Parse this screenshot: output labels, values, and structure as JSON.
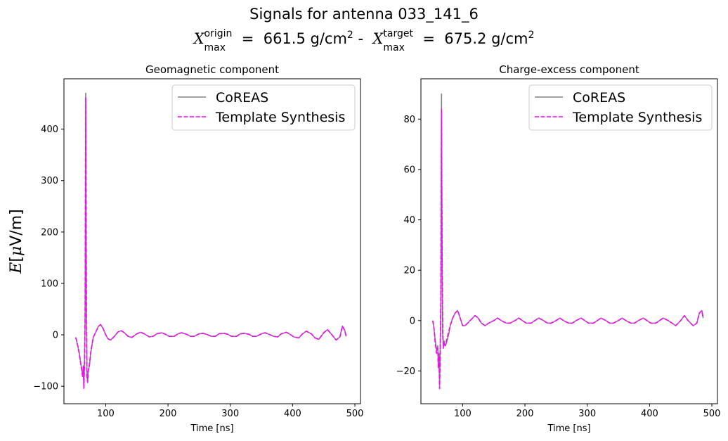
{
  "figure": {
    "title_line1": "Signals for antenna 033_141_6",
    "title_line2": {
      "origin_label": "X",
      "origin_sup": "origin",
      "origin_sub": "max",
      "origin_value": "661.5 g/cm",
      "target_label": "X",
      "target_sup": "target",
      "target_sub": "max",
      "target_value": "675.2 g/cm",
      "exponent": "2",
      "separator": "-"
    },
    "ylabel": "E[μV/m]"
  },
  "colors": {
    "coreas": "#808080",
    "template": "#ff00ff",
    "axes": "#000000",
    "legend_border": "#cccccc"
  },
  "chart_data": [
    {
      "type": "line",
      "title": "Geomagnetic component",
      "xlabel": "Time [ns]",
      "ylabel": "E[μV/m]",
      "xlim": [
        33,
        509
      ],
      "ylim": [
        -134,
        498
      ],
      "xticks": [
        100,
        200,
        300,
        400,
        500
      ],
      "yticks": [
        -100,
        0,
        100,
        200,
        300,
        400
      ],
      "ytick_labels": [
        "−100",
        "0",
        "100",
        "200",
        "300",
        "400"
      ],
      "grid": false,
      "legend": {
        "position": "upper right",
        "entries": [
          "CoREAS",
          "Template Synthesis"
        ]
      },
      "series": [
        {
          "name": "CoREAS",
          "style": "solid",
          "x": [
            52,
            55,
            58,
            60,
            62,
            63,
            64,
            65,
            66,
            67,
            68,
            69,
            70,
            71,
            72,
            74,
            76,
            78,
            80,
            84,
            88,
            92,
            96,
            100,
            104,
            108,
            114,
            120,
            125,
            130,
            136,
            142,
            150,
            156,
            162,
            170,
            176,
            182,
            190,
            196,
            202,
            210,
            216,
            222,
            230,
            236,
            242,
            250,
            256,
            262,
            270,
            276,
            282,
            290,
            296,
            302,
            310,
            316,
            322,
            330,
            336,
            342,
            350,
            356,
            362,
            370,
            376,
            382,
            390,
            396,
            402,
            410,
            416,
            422,
            430,
            436,
            442,
            450,
            456,
            462,
            470,
            476,
            480,
            484,
            486
          ],
          "y": [
            -5,
            -20,
            -38,
            -55,
            -70,
            -80,
            -60,
            -104,
            -50,
            30,
            470,
            100,
            -80,
            -93,
            -70,
            -60,
            -35,
            -20,
            -5,
            5,
            16,
            20,
            12,
            0,
            -8,
            -10,
            -3,
            6,
            8,
            4,
            -3,
            -5,
            2,
            5,
            2,
            -4,
            -3,
            2,
            4,
            1,
            -3,
            -3,
            2,
            4,
            1,
            -3,
            -3,
            2,
            3,
            1,
            -3,
            -3,
            2,
            3,
            1,
            -3,
            -3,
            2,
            3,
            1,
            -3,
            -3,
            2,
            4,
            1,
            -3,
            -4,
            2,
            5,
            1,
            -4,
            -6,
            2,
            7,
            2,
            -6,
            -9,
            4,
            10,
            2,
            -10,
            -4,
            17,
            8,
            -3
          ]
        },
        {
          "name": "Template Synthesis",
          "style": "dashed",
          "x": [
            52,
            55,
            58,
            60,
            62,
            63,
            64,
            65,
            66,
            67,
            68,
            69,
            70,
            71,
            72,
            74,
            76,
            78,
            80,
            84,
            88,
            92,
            96,
            100,
            104,
            108,
            114,
            120,
            125,
            130,
            136,
            142,
            150,
            156,
            162,
            170,
            176,
            182,
            190,
            196,
            202,
            210,
            216,
            222,
            230,
            236,
            242,
            250,
            256,
            262,
            270,
            276,
            282,
            290,
            296,
            302,
            310,
            316,
            322,
            330,
            336,
            342,
            350,
            356,
            362,
            370,
            376,
            382,
            390,
            396,
            402,
            410,
            416,
            422,
            430,
            436,
            442,
            450,
            456,
            462,
            470,
            476,
            480,
            484,
            486
          ],
          "y": [
            -5,
            -21,
            -40,
            -57,
            -72,
            -82,
            -62,
            -104,
            -52,
            28,
            462,
            96,
            -82,
            -92,
            -70,
            -58,
            -34,
            -19,
            -5,
            5,
            16,
            20,
            12,
            0,
            -8,
            -10,
            -3,
            6,
            8,
            4,
            -3,
            -5,
            2,
            5,
            2,
            -4,
            -3,
            2,
            4,
            1,
            -3,
            -3,
            2,
            4,
            1,
            -3,
            -3,
            2,
            3,
            1,
            -3,
            -3,
            2,
            3,
            1,
            -3,
            -3,
            2,
            3,
            1,
            -3,
            -3,
            2,
            4,
            1,
            -3,
            -4,
            2,
            5,
            1,
            -4,
            -6,
            2,
            7,
            2,
            -6,
            -9,
            4,
            10,
            2,
            -10,
            -4,
            17,
            8,
            -3
          ]
        }
      ]
    },
    {
      "type": "line",
      "title": "Charge-excess component",
      "xlabel": "Time [ns]",
      "ylabel": "",
      "xlim": [
        33,
        509
      ],
      "ylim": [
        -33,
        96
      ],
      "xticks": [
        100,
        200,
        300,
        400,
        500
      ],
      "yticks": [
        -20,
        0,
        20,
        40,
        60,
        80
      ],
      "ytick_labels": [
        "−20",
        "0",
        "20",
        "40",
        "60",
        "80"
      ],
      "grid": false,
      "legend": {
        "position": "upper right",
        "entries": [
          "CoREAS",
          "Template Synthesis"
        ]
      },
      "series": [
        {
          "name": "CoREAS",
          "style": "solid",
          "x": [
            52,
            54,
            56,
            58,
            60,
            61,
            62,
            63,
            64,
            65,
            66,
            67,
            68,
            69,
            70,
            72,
            74,
            76,
            78,
            80,
            84,
            88,
            92,
            96,
            100,
            104,
            108,
            112,
            116,
            120,
            125,
            130,
            136,
            142,
            150,
            156,
            162,
            170,
            176,
            184,
            190,
            196,
            202,
            210,
            216,
            222,
            230,
            236,
            242,
            250,
            256,
            262,
            270,
            276,
            282,
            290,
            296,
            302,
            310,
            316,
            322,
            330,
            336,
            342,
            350,
            356,
            362,
            370,
            376,
            382,
            390,
            396,
            402,
            410,
            416,
            422,
            430,
            436,
            442,
            450,
            456,
            462,
            470,
            476,
            480,
            484,
            486
          ],
          "y": [
            0,
            -3,
            -8,
            -12,
            -10,
            -18,
            -13,
            -27,
            -10,
            10,
            90,
            30,
            -5,
            -10,
            -8,
            -10,
            -9,
            -7,
            -5,
            -2,
            1,
            3,
            4,
            1,
            -2,
            -2,
            -1,
            0,
            1,
            2,
            1,
            -1,
            -2,
            -1,
            0,
            1,
            0,
            -1,
            -1,
            0,
            1,
            0,
            -1,
            -1,
            0,
            1,
            0,
            -1,
            -1,
            0,
            1,
            0,
            -1,
            -1,
            0,
            1,
            0,
            -1,
            -1,
            0,
            1,
            0,
            -1,
            -1,
            0,
            1,
            0,
            -1,
            -1,
            0,
            1,
            0,
            -1,
            -1,
            0,
            1,
            0,
            -1,
            -2,
            0,
            2,
            0,
            -2,
            -1,
            3,
            4,
            1
          ]
        },
        {
          "name": "Template Synthesis",
          "style": "dashed",
          "x": [
            52,
            54,
            56,
            58,
            60,
            61,
            62,
            63,
            64,
            65,
            66,
            67,
            68,
            69,
            70,
            72,
            74,
            76,
            78,
            80,
            84,
            88,
            92,
            96,
            100,
            104,
            108,
            112,
            116,
            120,
            125,
            130,
            136,
            142,
            150,
            156,
            162,
            170,
            176,
            184,
            190,
            196,
            202,
            210,
            216,
            222,
            230,
            236,
            242,
            250,
            256,
            262,
            270,
            276,
            282,
            290,
            296,
            302,
            310,
            316,
            322,
            330,
            336,
            342,
            350,
            356,
            362,
            370,
            376,
            382,
            390,
            396,
            402,
            410,
            416,
            422,
            430,
            436,
            442,
            450,
            456,
            462,
            470,
            476,
            480,
            484,
            486
          ],
          "y": [
            0,
            -3,
            -9,
            -13,
            -11,
            -19,
            -14,
            -27,
            -11,
            8,
            84,
            28,
            -6,
            -11,
            -9,
            -10,
            -8,
            -6,
            -4,
            -2,
            1,
            3,
            4,
            1,
            -2,
            -2,
            -1,
            0,
            1,
            2,
            1,
            -1,
            -2,
            -1,
            0,
            1,
            0,
            -1,
            -1,
            0,
            1,
            0,
            -1,
            -1,
            0,
            1,
            0,
            -1,
            -1,
            0,
            1,
            0,
            -1,
            -1,
            0,
            1,
            0,
            -1,
            -1,
            0,
            1,
            0,
            -1,
            -1,
            0,
            1,
            0,
            -1,
            -1,
            0,
            1,
            0,
            -1,
            -1,
            0,
            1,
            0,
            -1,
            -2,
            0,
            2,
            0,
            -2,
            -1,
            3,
            4,
            1
          ]
        }
      ]
    }
  ]
}
